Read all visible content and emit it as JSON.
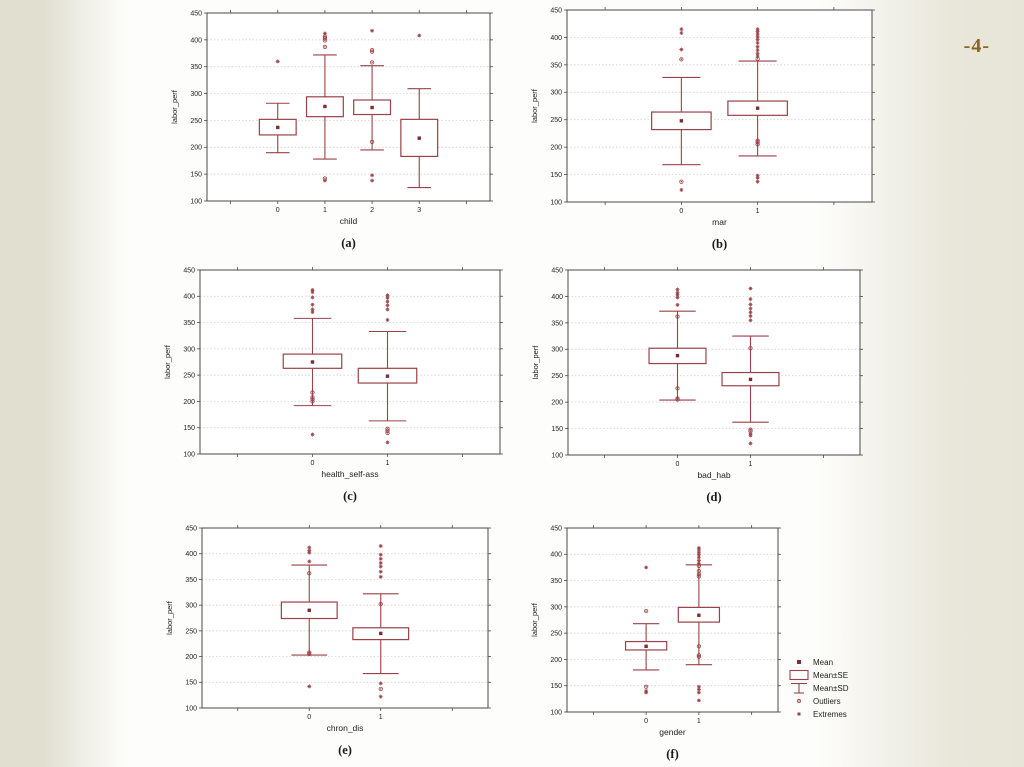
{
  "page": {
    "number_label": "-4-"
  },
  "colors": {
    "maroon": "#9a4247",
    "mean_fill": "#7b2d31",
    "frame": "#4a4a4a",
    "grid": "#cbcbcb",
    "text": "#222222",
    "caption": "#1a1a1a",
    "page_number": "#8a651c",
    "plot_bg": "#ffffff"
  },
  "legend": {
    "items": [
      {
        "marker": "mean-marker",
        "label": "Mean"
      },
      {
        "marker": "se-box",
        "label": "Mean±SE"
      },
      {
        "marker": "sd-whisker",
        "label": "Mean±SD"
      },
      {
        "marker": "outlier-marker",
        "label": "Outliers"
      },
      {
        "marker": "extreme-marker",
        "label": "Extremes"
      }
    ]
  },
  "chart_data": [
    {
      "type": "box",
      "caption": "(a)",
      "xlabel": "child",
      "ylabel": "labor_perf",
      "ylim": [
        100,
        450
      ],
      "ytick_step": 50,
      "grid": true,
      "categories": [
        "0",
        "1",
        "2",
        "3"
      ],
      "series": [
        {
          "category": "0",
          "mean": 237,
          "mean_se": [
            223,
            252
          ],
          "mean_sd": [
            190,
            282
          ],
          "outliers": [],
          "extremes": [
            360
          ]
        },
        {
          "category": "1",
          "mean": 276,
          "mean_se": [
            257,
            294
          ],
          "mean_sd": [
            178,
            372
          ],
          "outliers": [
            387,
            399,
            403,
            406,
            142
          ],
          "extremes": [
            412,
            138
          ]
        },
        {
          "category": "2",
          "mean": 274,
          "mean_se": [
            261,
            288
          ],
          "mean_sd": [
            195,
            352
          ],
          "outliers": [
            358,
            378,
            381,
            210
          ],
          "extremes": [
            417,
            148,
            138
          ]
        },
        {
          "category": "3",
          "mean": 217,
          "mean_se": [
            183,
            252
          ],
          "mean_sd": [
            125,
            309
          ],
          "outliers": [],
          "extremes": [
            408
          ]
        }
      ]
    },
    {
      "type": "box",
      "caption": "(b)",
      "xlabel": "mar",
      "ylabel": "labor_perf",
      "ylim": [
        100,
        450
      ],
      "ytick_step": 50,
      "grid": true,
      "categories": [
        "0",
        "1"
      ],
      "series": [
        {
          "category": "0",
          "mean": 248,
          "mean_se": [
            232,
            264
          ],
          "mean_sd": [
            168,
            327
          ],
          "outliers": [
            360,
            137
          ],
          "extremes": [
            415,
            408,
            378,
            122
          ]
        },
        {
          "category": "1",
          "mean": 271,
          "mean_se": [
            258,
            284
          ],
          "mean_sd": [
            184,
            357
          ],
          "outliers": [
            361,
            212,
            209,
            205
          ],
          "extremes": [
            415,
            411,
            406,
            401,
            396,
            390,
            383,
            377,
            371,
            366,
            148,
            144,
            137
          ]
        }
      ]
    },
    {
      "type": "box",
      "caption": "(c)",
      "xlabel": "health_self-ass",
      "ylabel": "labor_perf",
      "ylim": [
        100,
        450
      ],
      "ytick_step": 50,
      "grid": true,
      "categories": [
        "0",
        "1"
      ],
      "series": [
        {
          "category": "0",
          "mean": 275,
          "mean_se": [
            263,
            290
          ],
          "mean_sd": [
            192,
            358
          ],
          "outliers": [
            217,
            208,
            204,
            200
          ],
          "extremes": [
            412,
            408,
            398,
            384,
            375,
            370,
            137
          ]
        },
        {
          "category": "1",
          "mean": 248,
          "mean_se": [
            235,
            263
          ],
          "mean_sd": [
            163,
            333
          ],
          "outliers": [
            148,
            144,
            140
          ],
          "extremes": [
            402,
            397,
            390,
            383,
            375,
            355,
            122
          ]
        }
      ]
    },
    {
      "type": "box",
      "caption": "(d)",
      "xlabel": "bad_hab",
      "ylabel": "labor_perf",
      "ylim": [
        100,
        450
      ],
      "ytick_step": 50,
      "grid": true,
      "categories": [
        "0",
        "1"
      ],
      "series": [
        {
          "category": "0",
          "mean": 288,
          "mean_se": [
            273,
            302
          ],
          "mean_sd": [
            204,
            372
          ],
          "outliers": [
            362,
            226,
            207,
            205
          ],
          "extremes": [
            413,
            407,
            403,
            398,
            384
          ]
        },
        {
          "category": "1",
          "mean": 243,
          "mean_se": [
            231,
            256
          ],
          "mean_sd": [
            162,
            325
          ],
          "outliers": [
            302,
            148,
            145
          ],
          "extremes": [
            415,
            395,
            385,
            377,
            370,
            363,
            355,
            140,
            137,
            122
          ]
        }
      ]
    },
    {
      "type": "box",
      "caption": "(e)",
      "xlabel": "chron_dis",
      "ylabel": "labor_perf",
      "ylim": [
        100,
        450
      ],
      "ytick_step": 50,
      "grid": true,
      "categories": [
        "0",
        "1"
      ],
      "series": [
        {
          "category": "0",
          "mean": 290,
          "mean_se": [
            274,
            306
          ],
          "mean_sd": [
            203,
            378
          ],
          "outliers": [
            362,
            208,
            205
          ],
          "extremes": [
            412,
            406,
            402,
            385,
            142
          ]
        },
        {
          "category": "1",
          "mean": 245,
          "mean_se": [
            233,
            256
          ],
          "mean_sd": [
            167,
            322
          ],
          "outliers": [
            302,
            137
          ],
          "extremes": [
            415,
            398,
            390,
            382,
            375,
            365,
            355,
            148,
            122
          ]
        }
      ]
    },
    {
      "type": "box",
      "caption": "(f)",
      "xlabel": "gender",
      "ylabel": "labor_perf",
      "ylim": [
        100,
        450
      ],
      "ytick_step": 50,
      "grid": true,
      "categories": [
        "0",
        "1"
      ],
      "series": [
        {
          "category": "0",
          "mean": 225,
          "mean_se": [
            218,
            234
          ],
          "mean_sd": [
            180,
            268
          ],
          "outliers": [
            292,
            148
          ],
          "extremes": [
            375,
            140,
            137
          ]
        },
        {
          "category": "1",
          "mean": 284,
          "mean_se": [
            271,
            299
          ],
          "mean_sd": [
            190,
            380
          ],
          "outliers": [
            378,
            368,
            362,
            358,
            225,
            208,
            205
          ],
          "extremes": [
            412,
            408,
            403,
            399,
            394,
            388,
            383,
            148,
            143,
            137,
            122
          ]
        }
      ]
    }
  ]
}
